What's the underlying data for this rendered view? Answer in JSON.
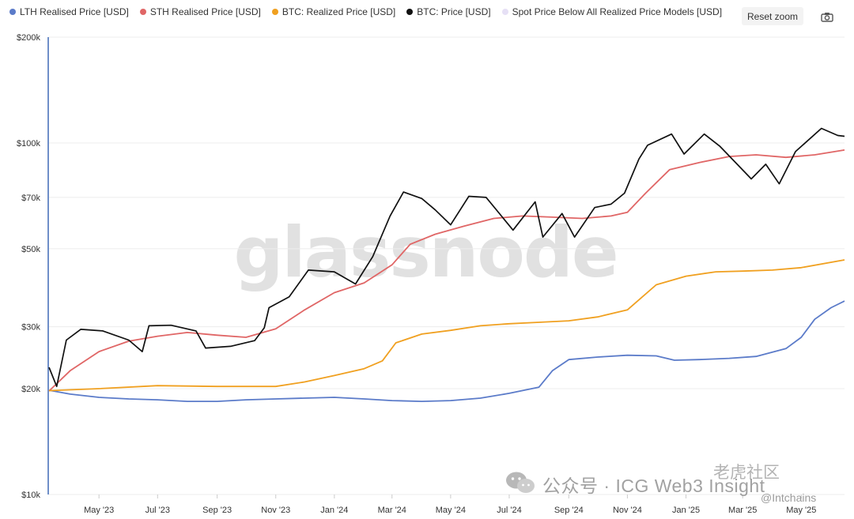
{
  "legend": {
    "items": [
      {
        "label": "LTH Realised Price [USD]",
        "color": "#5b7bc9"
      },
      {
        "label": "STH Realised Price [USD]",
        "color": "#e06666"
      },
      {
        "label": "BTC: Realized Price [USD]",
        "color": "#f0a020"
      },
      {
        "label": "BTC: Price [USD]",
        "color": "#111111"
      },
      {
        "label": "Spot Price Below All Realized Price Models [USD]",
        "color": "#e6e0f5"
      }
    ]
  },
  "toolbar": {
    "reset_zoom_label": "Reset zoom",
    "camera_icon": "camera-icon"
  },
  "watermark": {
    "logo_text": "glassnode",
    "channel_text": "公众号 · ICG Web3 Insight",
    "channel_icon": "wechat-icon",
    "site_mark": "老虎社区",
    "site_sub": "@Intchains"
  },
  "chart_data": {
    "type": "line",
    "y_scale": "log",
    "ylim": [
      10000,
      200000
    ],
    "y_ticks": [
      {
        "value": 10000,
        "label": "$10k"
      },
      {
        "value": 20000,
        "label": "$20k"
      },
      {
        "value": 30000,
        "label": "$30k"
      },
      {
        "value": 50000,
        "label": "$50k"
      },
      {
        "value": 70000,
        "label": "$70k"
      },
      {
        "value": 100000,
        "label": "$100k"
      },
      {
        "value": 200000,
        "label": "$200k"
      }
    ],
    "xlim": [
      "2023-03-10",
      "2025-06-15"
    ],
    "x_ticks": [
      {
        "date": "2023-05-01",
        "label": "May '23"
      },
      {
        "date": "2023-07-01",
        "label": "Jul '23"
      },
      {
        "date": "2023-09-01",
        "label": "Sep '23"
      },
      {
        "date": "2023-11-01",
        "label": "Nov '23"
      },
      {
        "date": "2024-01-01",
        "label": "Jan '24"
      },
      {
        "date": "2024-03-01",
        "label": "Mar '24"
      },
      {
        "date": "2024-05-01",
        "label": "May '24"
      },
      {
        "date": "2024-07-01",
        "label": "Jul '24"
      },
      {
        "date": "2024-09-01",
        "label": "Sep '24"
      },
      {
        "date": "2024-11-01",
        "label": "Nov '24"
      },
      {
        "date": "2025-01-01",
        "label": "Jan '25"
      },
      {
        "date": "2025-03-01",
        "label": "Mar '25"
      },
      {
        "date": "2025-05-01",
        "label": "May '25"
      }
    ],
    "grid": "horizontal",
    "legend_position": "top-left",
    "series": [
      {
        "name": "LTH Realised Price [USD]",
        "color": "#5b7bc9",
        "points": [
          [
            "2023-03-10",
            19800
          ],
          [
            "2023-04-01",
            19300
          ],
          [
            "2023-05-01",
            18900
          ],
          [
            "2023-06-01",
            18700
          ],
          [
            "2023-07-01",
            18600
          ],
          [
            "2023-08-01",
            18400
          ],
          [
            "2023-09-01",
            18400
          ],
          [
            "2023-10-01",
            18600
          ],
          [
            "2023-11-01",
            18700
          ],
          [
            "2023-12-01",
            18800
          ],
          [
            "2024-01-01",
            18900
          ],
          [
            "2024-02-01",
            18700
          ],
          [
            "2024-03-01",
            18500
          ],
          [
            "2024-04-01",
            18400
          ],
          [
            "2024-05-01",
            18500
          ],
          [
            "2024-06-01",
            18800
          ],
          [
            "2024-07-01",
            19400
          ],
          [
            "2024-08-01",
            20200
          ],
          [
            "2024-08-15",
            22500
          ],
          [
            "2024-09-01",
            24200
          ],
          [
            "2024-10-01",
            24600
          ],
          [
            "2024-11-01",
            24900
          ],
          [
            "2024-12-01",
            24800
          ],
          [
            "2024-12-20",
            24100
          ],
          [
            "2025-01-15",
            24200
          ],
          [
            "2025-02-15",
            24400
          ],
          [
            "2025-03-15",
            24700
          ],
          [
            "2025-04-15",
            26000
          ],
          [
            "2025-05-01",
            28000
          ],
          [
            "2025-05-15",
            31500
          ],
          [
            "2025-06-01",
            34000
          ],
          [
            "2025-06-15",
            35500
          ]
        ]
      },
      {
        "name": "STH Realised Price [USD]",
        "color": "#e06666",
        "points": [
          [
            "2023-03-10",
            19700
          ],
          [
            "2023-04-01",
            22500
          ],
          [
            "2023-05-01",
            25500
          ],
          [
            "2023-06-01",
            27300
          ],
          [
            "2023-07-01",
            28200
          ],
          [
            "2023-08-01",
            28900
          ],
          [
            "2023-09-01",
            28400
          ],
          [
            "2023-10-01",
            28000
          ],
          [
            "2023-11-01",
            29600
          ],
          [
            "2023-12-01",
            33500
          ],
          [
            "2024-01-01",
            37500
          ],
          [
            "2024-02-01",
            40000
          ],
          [
            "2024-03-01",
            45000
          ],
          [
            "2024-03-20",
            51500
          ],
          [
            "2024-04-15",
            55000
          ],
          [
            "2024-05-15",
            58000
          ],
          [
            "2024-06-15",
            61000
          ],
          [
            "2024-07-15",
            62000
          ],
          [
            "2024-08-15",
            61500
          ],
          [
            "2024-09-15",
            61000
          ],
          [
            "2024-10-15",
            62000
          ],
          [
            "2024-11-01",
            63500
          ],
          [
            "2024-11-20",
            72000
          ],
          [
            "2024-12-15",
            84000
          ],
          [
            "2025-01-15",
            88000
          ],
          [
            "2025-02-15",
            91500
          ],
          [
            "2025-03-15",
            92500
          ],
          [
            "2025-04-15",
            91000
          ],
          [
            "2025-05-15",
            92500
          ],
          [
            "2025-06-15",
            95500
          ]
        ]
      },
      {
        "name": "BTC: Realized Price [USD]",
        "color": "#f0a020",
        "points": [
          [
            "2023-03-10",
            19750
          ],
          [
            "2023-05-01",
            20000
          ],
          [
            "2023-07-01",
            20400
          ],
          [
            "2023-09-01",
            20300
          ],
          [
            "2023-11-01",
            20300
          ],
          [
            "2023-12-01",
            20900
          ],
          [
            "2024-01-01",
            21800
          ],
          [
            "2024-02-01",
            22800
          ],
          [
            "2024-02-20",
            24000
          ],
          [
            "2024-03-05",
            27000
          ],
          [
            "2024-04-01",
            28600
          ],
          [
            "2024-05-01",
            29300
          ],
          [
            "2024-06-01",
            30200
          ],
          [
            "2024-07-01",
            30600
          ],
          [
            "2024-08-01",
            30900
          ],
          [
            "2024-09-01",
            31200
          ],
          [
            "2024-10-01",
            32000
          ],
          [
            "2024-11-01",
            33500
          ],
          [
            "2024-12-01",
            39500
          ],
          [
            "2025-01-01",
            41800
          ],
          [
            "2025-02-01",
            43000
          ],
          [
            "2025-03-01",
            43200
          ],
          [
            "2025-04-01",
            43500
          ],
          [
            "2025-05-01",
            44200
          ],
          [
            "2025-06-15",
            46500
          ]
        ]
      },
      {
        "name": "BTC: Price [USD]",
        "color": "#111111",
        "points": [
          [
            "2023-03-10",
            23000
          ],
          [
            "2023-03-18",
            20300
          ],
          [
            "2023-03-28",
            27500
          ],
          [
            "2023-04-12",
            29500
          ],
          [
            "2023-05-05",
            29200
          ],
          [
            "2023-06-01",
            27500
          ],
          [
            "2023-06-15",
            25500
          ],
          [
            "2023-06-22",
            30200
          ],
          [
            "2023-07-15",
            30300
          ],
          [
            "2023-08-10",
            29200
          ],
          [
            "2023-08-20",
            26100
          ],
          [
            "2023-09-15",
            26400
          ],
          [
            "2023-10-10",
            27400
          ],
          [
            "2023-10-20",
            29800
          ],
          [
            "2023-10-25",
            34000
          ],
          [
            "2023-11-15",
            36500
          ],
          [
            "2023-12-05",
            43500
          ],
          [
            "2024-01-01",
            43000
          ],
          [
            "2024-01-23",
            39700
          ],
          [
            "2024-02-10",
            47500
          ],
          [
            "2024-02-28",
            62000
          ],
          [
            "2024-03-13",
            72500
          ],
          [
            "2024-04-01",
            69500
          ],
          [
            "2024-04-15",
            64500
          ],
          [
            "2024-05-01",
            58500
          ],
          [
            "2024-05-20",
            70500
          ],
          [
            "2024-06-07",
            70000
          ],
          [
            "2024-07-05",
            56500
          ],
          [
            "2024-07-28",
            68000
          ],
          [
            "2024-08-05",
            54000
          ],
          [
            "2024-08-25",
            63000
          ],
          [
            "2024-09-07",
            54000
          ],
          [
            "2024-09-28",
            65500
          ],
          [
            "2024-10-15",
            67000
          ],
          [
            "2024-10-29",
            72000
          ],
          [
            "2024-11-13",
            90000
          ],
          [
            "2024-11-22",
            98500
          ],
          [
            "2024-12-17",
            106000
          ],
          [
            "2024-12-30",
            93000
          ],
          [
            "2025-01-20",
            106000
          ],
          [
            "2025-02-05",
            98000
          ],
          [
            "2025-02-25",
            86000
          ],
          [
            "2025-03-10",
            79000
          ],
          [
            "2025-03-25",
            87000
          ],
          [
            "2025-04-08",
            76500
          ],
          [
            "2025-04-25",
            94500
          ],
          [
            "2025-05-22",
            110000
          ],
          [
            "2025-06-08",
            105000
          ],
          [
            "2025-06-15",
            104500
          ]
        ]
      }
    ]
  }
}
